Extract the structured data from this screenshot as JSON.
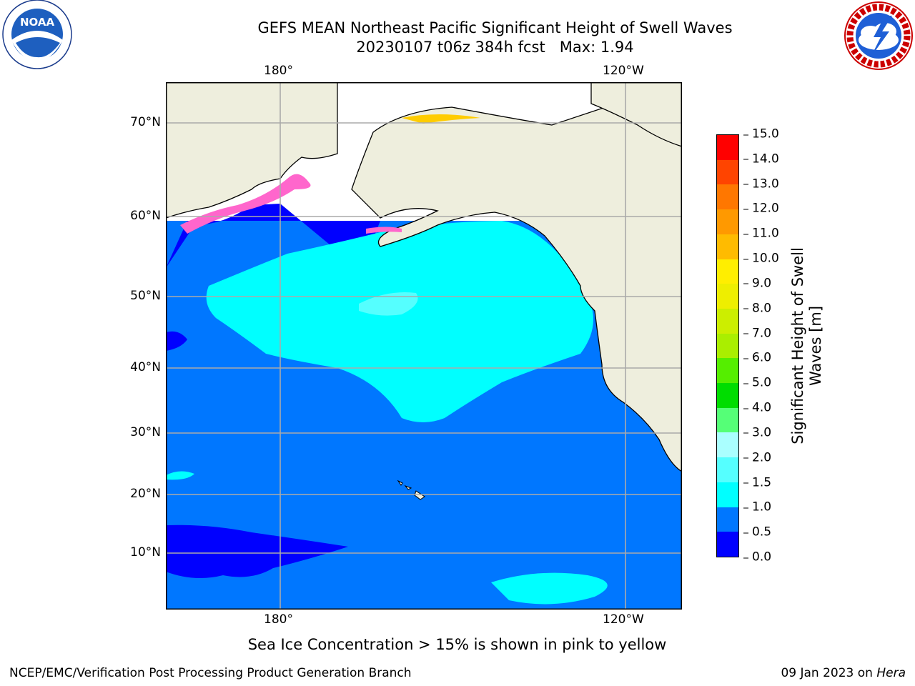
{
  "title": {
    "line1": "GEFS MEAN Northeast Pacific Significant Height of Swell Waves",
    "line2": "20230107 t06z 384h fcst   Max: 1.94"
  },
  "map": {
    "lon_labels": [
      "180°",
      "120°W"
    ],
    "lat_labels": [
      "70°N",
      "60°N",
      "50°N",
      "40°N",
      "30°N",
      "20°N",
      "10°N"
    ],
    "colors": {
      "ocean": "#0077ff",
      "land": "#eeeedd",
      "swell_1_1_5": "#00ffff",
      "swell_1_5_2": "#55ffff",
      "swell_0_0_5": "#0000ff",
      "ice_low": "#ff66cc",
      "ice_high": "#ffcc00"
    }
  },
  "colorbar": {
    "ticks": [
      "15.0",
      "14.0",
      "13.0",
      "12.0",
      "11.0",
      "10.0",
      "9.0",
      "8.0",
      "7.0",
      "6.0",
      "5.0",
      "4.0",
      "3.0",
      "2.0",
      "1.5",
      "1.0",
      "0.5",
      "0.0"
    ],
    "colors": [
      "#0000ff",
      "#0077ff",
      "#00ffff",
      "#55ffff",
      "#aaffff",
      "#55ff77",
      "#00dd00",
      "#55ee00",
      "#aaee00",
      "#ccee00",
      "#eeee00",
      "#ffee00",
      "#ffbb00",
      "#ff9900",
      "#ff7700",
      "#ff4400",
      "#ff0000"
    ],
    "label_line1": "Significant Height of Swell",
    "label_line2": "Waves [m]"
  },
  "note": "Sea Ice Concentration > 15% is shown in pink to yellow",
  "footer": {
    "left": "NCEP/EMC/Verification Post Processing Product Generation Branch",
    "right_date": "09 Jan 2023 on ",
    "right_machine": "Hera"
  },
  "logos": {
    "noaa": {
      "text": "NOAA",
      "ring_text": "NATIONAL OCEANIC AND ATMOSPHERIC ADMINISTRATION · U.S. DEPARTMENT OF COMMERCE"
    },
    "nws": {
      "ring_text": "NATIONAL WEATHER SERVICE"
    }
  }
}
